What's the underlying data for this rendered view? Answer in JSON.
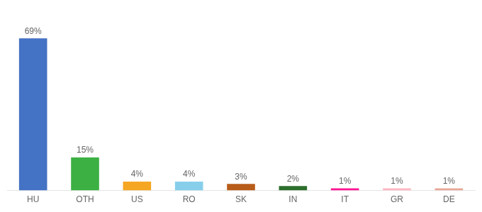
{
  "chart_data": {
    "type": "bar",
    "categories": [
      "HU",
      "OTH",
      "US",
      "RO",
      "SK",
      "IN",
      "IT",
      "GR",
      "DE"
    ],
    "values": [
      69,
      15,
      4,
      4,
      3,
      2,
      1,
      1,
      1
    ],
    "value_labels": [
      "69%",
      "15%",
      "4%",
      "4%",
      "3%",
      "2%",
      "1%",
      "1%",
      "1%"
    ],
    "colors": [
      "#4472c4",
      "#3cb043",
      "#f5a623",
      "#87ceeb",
      "#b85c1a",
      "#2d6e2d",
      "#ff1493",
      "#ffb6c1",
      "#e8a898"
    ],
    "data_labels": true,
    "ylim": [
      0,
      80
    ],
    "tick_labels": "x",
    "grid": false
  }
}
